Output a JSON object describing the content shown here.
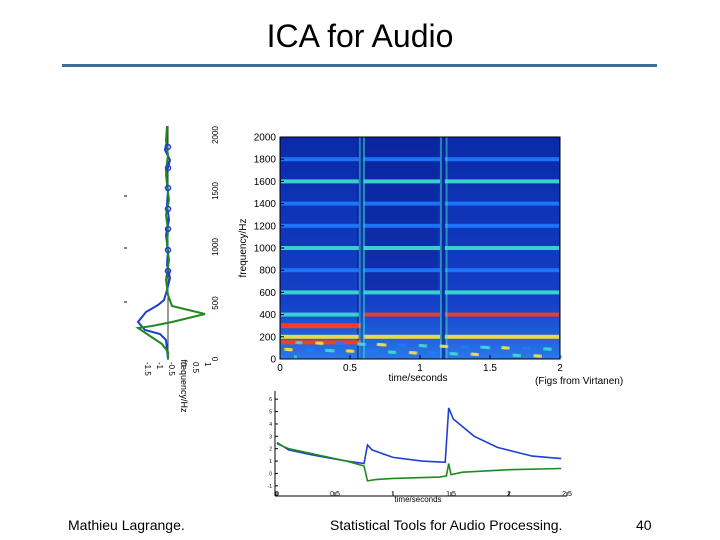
{
  "slide": {
    "title": "ICA for Audio",
    "caption": "(Figs from Virtanen)",
    "footer": {
      "author": "Mathieu Lagrange.",
      "course": "Statistical Tools for Audio Processing.",
      "page": "40"
    }
  },
  "chart_data": [
    {
      "type": "heatmap",
      "xlabel": "time/seconds",
      "ylabel": "frequency/Hz",
      "xlim": [
        0,
        2
      ],
      "ylim": [
        0,
        2000
      ],
      "xticks": [
        "0",
        "0.5",
        "1",
        "1.5",
        "2"
      ],
      "yticks": [
        "0",
        "200",
        "400",
        "600",
        "800",
        "1000",
        "1200",
        "1400",
        "1600",
        "1800",
        "2000"
      ],
      "colormap": [
        "#0a1f9e",
        "#1f7bff",
        "#3fe0d0",
        "#ffe63a",
        "#ff3b1f"
      ]
    },
    {
      "type": "line",
      "xlabel": "frequency/Hz",
      "xticks": [
        "0",
        "500",
        "1000",
        "1500",
        "2000"
      ],
      "yticks": [
        "-1.5",
        "-1",
        "-0.5",
        "0",
        "0.5",
        "1"
      ],
      "series": [
        {
          "color": "#1f3fd0"
        },
        {
          "color": "#1f8a1f"
        }
      ]
    },
    {
      "type": "line",
      "xlabel": "time/seconds",
      "xticks": [
        "0",
        "0.5",
        "1",
        "1.5",
        "2",
        "2.5"
      ],
      "yticks": [
        "-1",
        "0",
        "1",
        "2",
        "3",
        "4",
        "5",
        "6"
      ],
      "series": [
        {
          "color": "#1f3fd0",
          "x": [
            0,
            0.1,
            0.3,
            0.6,
            0.75,
            0.78,
            0.82,
            1.0,
            1.25,
            1.45,
            1.48,
            1.52,
            1.7,
            1.9,
            2.2,
            2.45
          ],
          "y": [
            2.5,
            1.9,
            1.5,
            1.0,
            0.8,
            2.3,
            1.9,
            1.3,
            1.0,
            0.9,
            5.3,
            4.4,
            3.0,
            2.1,
            1.4,
            1.2
          ]
        },
        {
          "color": "#1f8a1f",
          "x": [
            0,
            0.1,
            0.3,
            0.6,
            0.75,
            0.78,
            0.85,
            1.0,
            1.4,
            1.46,
            1.48,
            1.5,
            1.6,
            2.0,
            2.45
          ],
          "y": [
            2.4,
            2.0,
            1.6,
            1.0,
            0.6,
            -0.6,
            -0.5,
            -0.4,
            -0.3,
            -0.2,
            0.8,
            -0.1,
            0.1,
            0.3,
            0.4
          ]
        }
      ]
    }
  ]
}
